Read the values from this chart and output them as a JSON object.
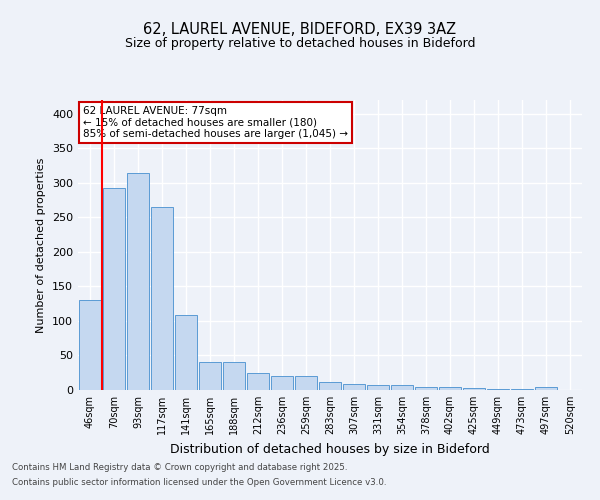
{
  "title1": "62, LAUREL AVENUE, BIDEFORD, EX39 3AZ",
  "title2": "Size of property relative to detached houses in Bideford",
  "xlabel": "Distribution of detached houses by size in Bideford",
  "ylabel": "Number of detached properties",
  "categories": [
    "46sqm",
    "70sqm",
    "93sqm",
    "117sqm",
    "141sqm",
    "165sqm",
    "188sqm",
    "212sqm",
    "236sqm",
    "259sqm",
    "283sqm",
    "307sqm",
    "331sqm",
    "354sqm",
    "378sqm",
    "402sqm",
    "425sqm",
    "449sqm",
    "473sqm",
    "497sqm",
    "520sqm"
  ],
  "values": [
    130,
    293,
    315,
    265,
    108,
    41,
    41,
    25,
    20,
    20,
    11,
    9,
    7,
    7,
    5,
    5,
    3,
    2,
    2,
    4,
    0
  ],
  "bar_color": "#c5d8f0",
  "bar_edge_color": "#5b9bd5",
  "red_line_x": 1.0,
  "annotation_title": "62 LAUREL AVENUE: 77sqm",
  "annotation_line1": "← 15% of detached houses are smaller (180)",
  "annotation_line2": "85% of semi-detached houses are larger (1,045) →",
  "annotation_box_color": "#ffffff",
  "annotation_box_edge": "#cc0000",
  "footer1": "Contains HM Land Registry data © Crown copyright and database right 2025.",
  "footer2": "Contains public sector information licensed under the Open Government Licence v3.0.",
  "background_color": "#eef2f9",
  "grid_color": "#ffffff",
  "ylim": [
    0,
    420
  ],
  "yticks": [
    0,
    50,
    100,
    150,
    200,
    250,
    300,
    350,
    400
  ]
}
